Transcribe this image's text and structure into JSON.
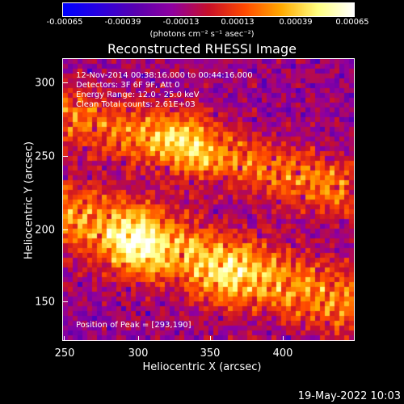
{
  "colorbar": {
    "ticks": [
      "-0.00065",
      "-0.00039",
      "-0.00013",
      "0.00013",
      "0.00039",
      "0.00065"
    ],
    "units": "(photons cm⁻² s⁻¹ asec⁻²)",
    "colors": [
      "#0000ff",
      "#2a00e0",
      "#5a00b0",
      "#9000a0",
      "#c8102a",
      "#ff4a00",
      "#ffaa00",
      "#ffff80",
      "#ffffff"
    ]
  },
  "title": "Reconstructed RHESSI Image",
  "overlay": {
    "line1": "12-Nov-2014 00:38:16.000 to 00:44:16.000",
    "line2": "Detectors: 3F 6F 9F, Att 0",
    "line3": "Energy Range: 12.0 - 25.0 keV",
    "line4": "Clean    Total counts: 2.61E+03",
    "peak": "Position of Peak = [293,190]"
  },
  "axes": {
    "xlabel": "Heliocentric X (arcsec)",
    "ylabel": "Heliocentric Y (arcsec)",
    "xticks": [
      "250",
      "300",
      "350",
      "400"
    ],
    "yticks": [
      "150",
      "200",
      "250",
      "300"
    ],
    "xlim": [
      248,
      438
    ],
    "ylim": [
      122,
      315
    ]
  },
  "date_stamp": "19-May-2022 10:03"
}
